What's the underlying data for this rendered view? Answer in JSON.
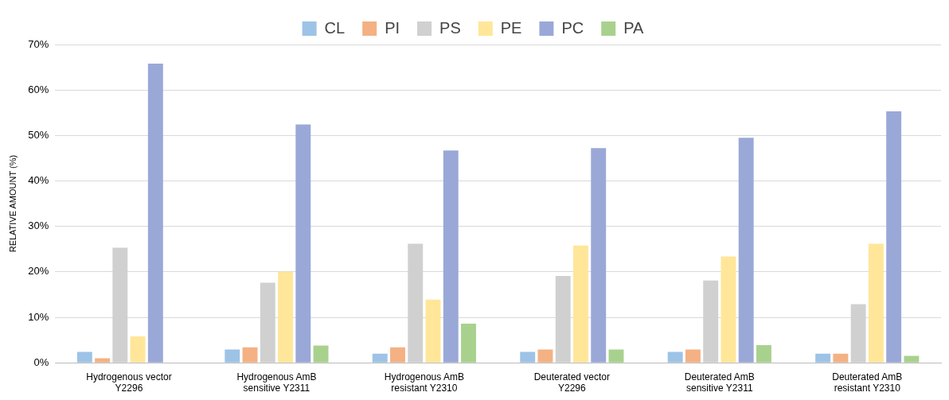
{
  "chart_data": {
    "type": "bar",
    "ylabel": "RELATIVE AMOUNT (%)",
    "categories": [
      "Hydrogenous vector\nY2296",
      "Hydrogenous AmB\nsensitive Y2311",
      "Hydrogenous AmB\nresistant Y2310",
      "Deuterated vector\nY2296",
      "Deuterated AmB\nsensitive Y2311",
      "Deuterated AmB\nresistant Y2310"
    ],
    "series": [
      {
        "name": "CL",
        "color": "#9dc3e6",
        "values": [
          2.4,
          2.9,
          2.0,
          2.4,
          2.4,
          2.0
        ]
      },
      {
        "name": "PI",
        "color": "#f4b183",
        "values": [
          1.0,
          3.4,
          3.4,
          2.9,
          2.9,
          2.0
        ]
      },
      {
        "name": "PS",
        "color": "#d0d0d0",
        "values": [
          25.3,
          17.6,
          26.2,
          19.1,
          18.1,
          12.9
        ]
      },
      {
        "name": "PE",
        "color": "#ffe699",
        "values": [
          5.8,
          20.0,
          13.9,
          25.8,
          23.4,
          26.2
        ]
      },
      {
        "name": "PC",
        "color": "#9aa8d8",
        "values": [
          65.8,
          52.4,
          46.7,
          47.2,
          49.5,
          55.3
        ]
      },
      {
        "name": "PA",
        "color": "#a9d18e",
        "values": [
          0,
          3.8,
          8.6,
          2.9,
          3.9,
          1.5
        ]
      }
    ],
    "ylim": [
      0,
      70
    ],
    "yticks": [
      {
        "value": 0,
        "label": "0%"
      },
      {
        "value": 10,
        "label": "10%"
      },
      {
        "value": 20,
        "label": "20%"
      },
      {
        "value": 30,
        "label": "30%"
      },
      {
        "value": 40,
        "label": "40%"
      },
      {
        "value": 50,
        "label": "50%"
      },
      {
        "value": 60,
        "label": "60%"
      },
      {
        "value": 70,
        "label": "70%"
      }
    ],
    "grid": "y",
    "legend": "top"
  }
}
